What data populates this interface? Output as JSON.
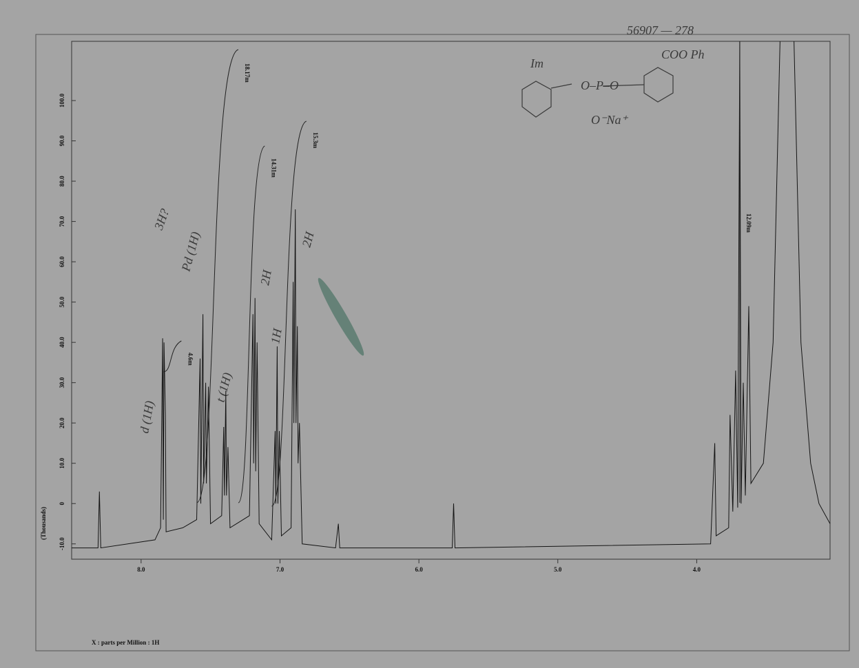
{
  "chart_data": {
    "type": "line",
    "title": "56907 — 278",
    "x_label": "X : parts per Million : 1H",
    "y_label": "(Thousands)",
    "xlim": [
      8.5,
      3.04
    ],
    "ylim": [
      -13.8,
      114.7
    ],
    "xticks": [
      {
        "value": 8,
        "label": "8.0"
      },
      {
        "value": 7,
        "label": "7.0"
      },
      {
        "value": 6,
        "label": "6.0"
      },
      {
        "value": 5,
        "label": "5.0"
      },
      {
        "value": 4,
        "label": "4.0"
      }
    ],
    "yticks": [
      {
        "value": -10,
        "label": "-10.0"
      },
      0,
      {
        "value": 10,
        "label": "10.0"
      },
      {
        "value": 20,
        "label": "20.0"
      },
      {
        "value": 30,
        "label": "30.0"
      },
      {
        "value": 40,
        "label": "40.0"
      },
      {
        "value": 50,
        "label": "50.0"
      },
      {
        "value": 60,
        "label": "60.0"
      },
      {
        "value": 70,
        "label": "70.0"
      },
      {
        "value": 80,
        "label": "80.0"
      },
      {
        "value": 90,
        "label": "90.0"
      },
      {
        "value": 100,
        "label": "100.0"
      }
    ],
    "series": [
      {
        "color": "#141414",
        "x": [
          8.5,
          8.31,
          8.3,
          8.29,
          7.9,
          7.86,
          7.845,
          7.84,
          7.835,
          7.825,
          7.82,
          7.7,
          7.6,
          7.575,
          7.57,
          7.555,
          7.55,
          7.535,
          7.53,
          7.515,
          7.5,
          7.42,
          7.405,
          7.4,
          7.39,
          7.385,
          7.375,
          7.36,
          7.22,
          7.195,
          7.19,
          7.18,
          7.175,
          7.165,
          7.15,
          7.06,
          7.035,
          7.03,
          7.02,
          7.015,
          7.005,
          6.99,
          6.92,
          6.905,
          6.9,
          6.89,
          6.885,
          6.875,
          6.87,
          6.86,
          6.84,
          6.6,
          6.58,
          6.57,
          5.76,
          5.75,
          5.74,
          3.9,
          3.87,
          3.86,
          3.77,
          3.76,
          3.74,
          3.72,
          3.705,
          3.69,
          3.68,
          3.665,
          3.65,
          3.625,
          3.61,
          3.52,
          3.45,
          3.4,
          3.3,
          3.25,
          3.18,
          3.12,
          3.04
        ],
        "values": [
          -11,
          -11,
          3,
          -11,
          -9,
          -6,
          41,
          -4,
          40,
          22,
          -7,
          -6,
          -4,
          36,
          0,
          47,
          5,
          30,
          5,
          29,
          -5,
          -3,
          19,
          2,
          28,
          2,
          14,
          -6,
          -3,
          47,
          10,
          51,
          8,
          40,
          -5,
          -9,
          18,
          0,
          39,
          0,
          18,
          -8,
          -6,
          55,
          20,
          73,
          20,
          44,
          10,
          20,
          -10,
          -11,
          -5,
          -11,
          -11,
          0,
          -11,
          -10,
          15,
          -8,
          -6,
          22,
          -2,
          33,
          -1,
          115,
          0,
          30,
          2,
          49,
          5,
          10,
          40,
          115,
          115,
          40,
          10,
          0,
          -5
        ]
      }
    ],
    "integrals": [
      {
        "label": "4.6m",
        "from": 7.84,
        "to": 7.71
      },
      {
        "label": "18.17m",
        "from": 7.6,
        "to": 7.3
      },
      {
        "label": "14.31m",
        "from": 7.3,
        "to": 7.11
      },
      {
        "label": "15.3m",
        "from": 7.06,
        "to": 6.81
      },
      {
        "label": "12.09m",
        "from": 3.69,
        "to": 3.69
      }
    ],
    "annotations": [
      "Im",
      "COO Ph",
      "O⁻Na⁺",
      "d (1H)",
      "t (1H)",
      "3H?",
      "Pd (1H)",
      "2H",
      "1H",
      "2H"
    ]
  }
}
